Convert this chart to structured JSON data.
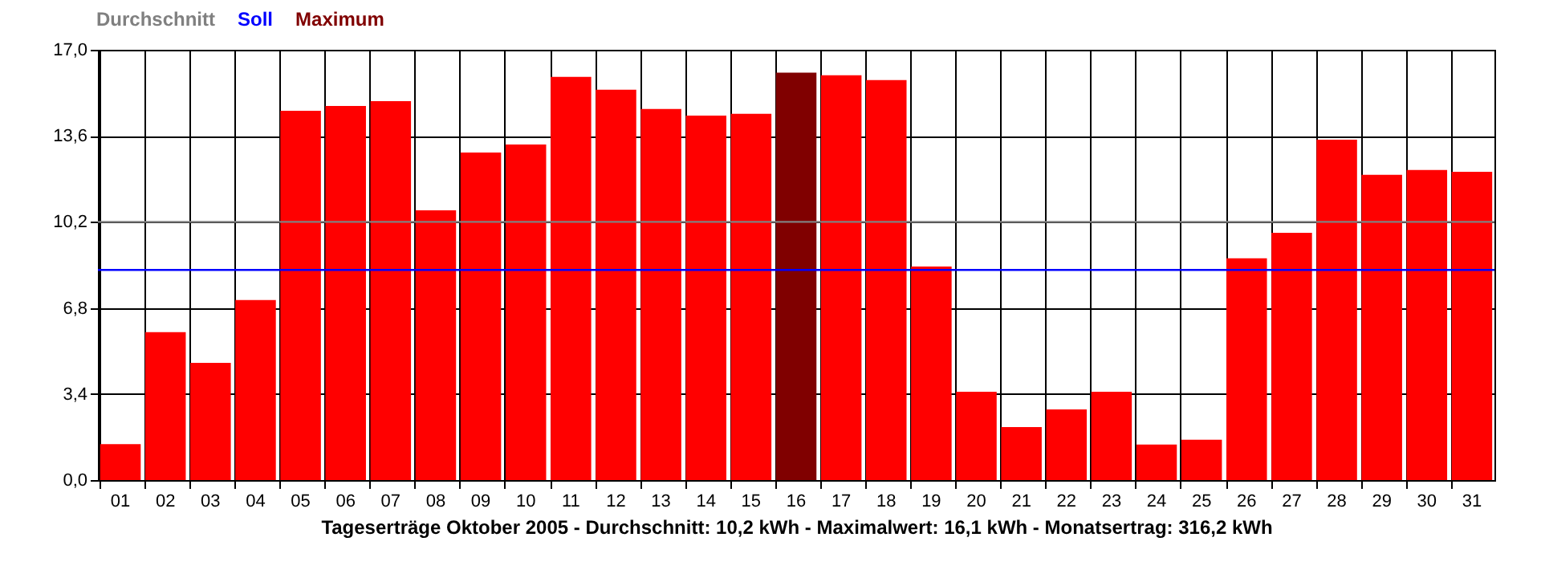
{
  "chart_data": {
    "type": "bar",
    "xlabel": "Tageserträge Oktober 2005 - Durchschnitt: 10,2 kWh - Maximalwert: 16,1 kWh - Monatsertrag: 316,2 kWh",
    "categories": [
      "01",
      "02",
      "03",
      "04",
      "05",
      "06",
      "07",
      "08",
      "09",
      "10",
      "11",
      "12",
      "13",
      "14",
      "15",
      "16",
      "17",
      "18",
      "19",
      "20",
      "21",
      "22",
      "23",
      "24",
      "25",
      "26",
      "27",
      "28",
      "29",
      "30",
      "31"
    ],
    "values": [
      1.42,
      5.84,
      4.63,
      7.11,
      14.59,
      14.78,
      14.97,
      10.66,
      12.94,
      13.26,
      15.93,
      15.42,
      14.66,
      14.4,
      14.47,
      16.1,
      15.99,
      15.8,
      8.44,
      3.49,
      2.09,
      2.79,
      3.49,
      1.4,
      1.59,
      8.76,
      9.77,
      13.45,
      12.06,
      12.25,
      12.18
    ],
    "colors": [
      "#ff0000",
      "#ff0000",
      "#ff0000",
      "#ff0000",
      "#ff0000",
      "#ff0000",
      "#ff0000",
      "#ff0000",
      "#ff0000",
      "#ff0000",
      "#ff0000",
      "#ff0000",
      "#ff0000",
      "#ff0000",
      "#ff0000",
      "#800000",
      "#ff0000",
      "#ff0000",
      "#ff0000",
      "#ff0000",
      "#ff0000",
      "#ff0000",
      "#ff0000",
      "#ff0000",
      "#ff0000",
      "#ff0000",
      "#ff0000",
      "#ff0000",
      "#ff0000",
      "#ff0000",
      "#ff0000"
    ],
    "ylim": [
      0,
      17
    ],
    "yticks": [
      {
        "value": 0,
        "label": "0,0"
      },
      {
        "value": 3.4,
        "label": "3,4"
      },
      {
        "value": 6.8,
        "label": "6,8"
      },
      {
        "value": 10.2,
        "label": "10,2"
      },
      {
        "value": 13.6,
        "label": "13,6"
      },
      {
        "value": 17,
        "label": "17,0"
      }
    ],
    "ref_lines": [
      {
        "axis": "y",
        "value": 10.2,
        "label": "Durchschnitt",
        "color": "#808080"
      },
      {
        "axis": "y",
        "value": 8.3,
        "label": "Soll",
        "color": "#0000ff"
      }
    ],
    "annotations": [
      "Maximum"
    ],
    "grid": true,
    "legend": "top left"
  }
}
